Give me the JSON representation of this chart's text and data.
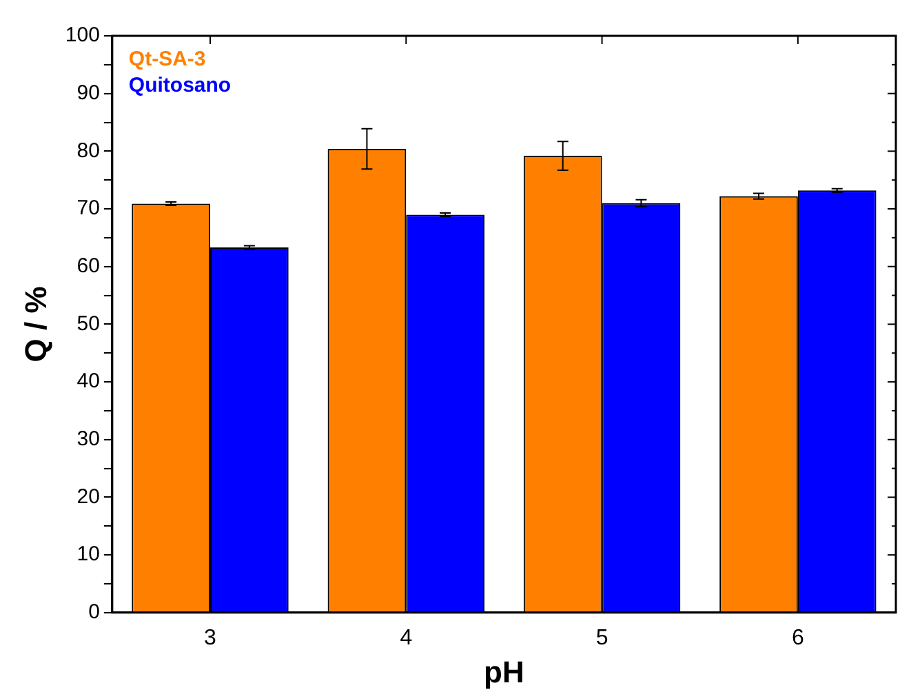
{
  "chart_data": {
    "type": "bar",
    "xlabel": "pH",
    "ylabel": "Q / %",
    "categories": [
      "3",
      "4",
      "5",
      "6"
    ],
    "series": [
      {
        "name": "Qt-SA-3",
        "color": "#ff8000",
        "values": [
          70.9,
          80.4,
          79.2,
          72.2
        ],
        "errors": [
          0.3,
          3.5,
          2.5,
          0.5
        ]
      },
      {
        "name": "Quitosano",
        "color": "#0000ff",
        "values": [
          63.3,
          69.0,
          71.0,
          73.2
        ],
        "errors": [
          0.3,
          0.3,
          0.6,
          0.3
        ]
      }
    ],
    "ylim": [
      0,
      100
    ],
    "yticks": [
      0,
      {
        "value": 5,
        "label": null
      },
      10,
      {
        "value": 15,
        "label": null
      },
      20,
      {
        "value": 25,
        "label": null
      },
      30,
      {
        "value": 35,
        "label": null
      },
      40,
      {
        "value": 45,
        "label": null
      },
      50,
      {
        "value": 55,
        "label": null
      },
      60,
      {
        "value": 65,
        "label": null
      },
      70,
      {
        "value": 75,
        "label": null
      },
      80,
      {
        "value": 85,
        "label": null
      },
      90,
      {
        "value": 95,
        "label": null
      },
      100
    ],
    "grid": false,
    "legend": "top left"
  }
}
